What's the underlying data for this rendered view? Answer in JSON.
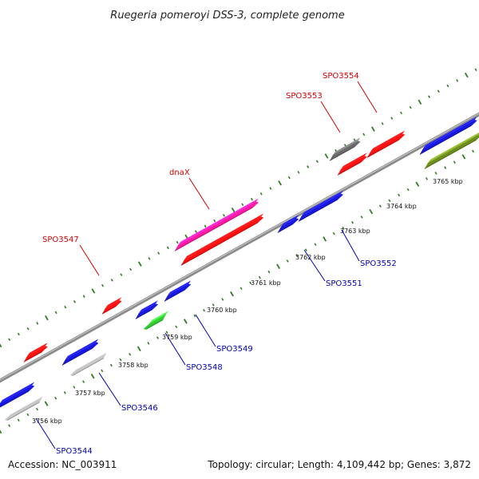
{
  "title": "Ruegeria pomeroyi DSS-3, complete genome",
  "footer": {
    "accession": "Accession: NC_003911",
    "summary": "Topology: circular; Length: 4,109,442 bp; Genes: 3,872"
  },
  "colors": {
    "backbone": "#8a8a8a",
    "tick": "#2e7d1f",
    "label_forward": "#d40000",
    "label_reverse": "#0000b0",
    "red": "#ff1010",
    "blue": "#1818e0",
    "gray": "#c8c8c8",
    "darkgray": "#6a6a6a",
    "magenta": "#ff1aa6",
    "green": "#33cc33",
    "olive": "#6e8f1e"
  },
  "axis": {
    "tick_labels": [
      "3756 kbp",
      "3757 kbp",
      "3758 kbp",
      "3759 kbp",
      "3760 kbp",
      "3761 kbp",
      "3762 kbp",
      "3763 kbp",
      "3764 kbp",
      "3765 kbp"
    ]
  },
  "features": [
    {
      "id": "f1",
      "color": "blue",
      "strand": "+"
    },
    {
      "id": "f2",
      "color": "gray",
      "strand": "-"
    },
    {
      "id": "f3",
      "color": "red",
      "strand": "+"
    },
    {
      "id": "f4",
      "color": "blue",
      "strand": "+"
    },
    {
      "id": "f5",
      "color": "gray",
      "strand": "-"
    },
    {
      "id": "f6",
      "color": "red",
      "strand": "+"
    },
    {
      "id": "f7",
      "color": "blue",
      "strand": "+"
    },
    {
      "id": "f8",
      "color": "green",
      "strand": "-"
    },
    {
      "id": "f9",
      "color": "blue",
      "strand": "+"
    },
    {
      "id": "f10",
      "color": "magenta",
      "strand": "+"
    },
    {
      "id": "f11",
      "color": "red",
      "strand": "+"
    },
    {
      "id": "f12",
      "color": "blue",
      "strand": "+"
    },
    {
      "id": "f13",
      "color": "blue",
      "strand": "+"
    },
    {
      "id": "f14",
      "color": "darkgray",
      "strand": "+"
    },
    {
      "id": "f15",
      "color": "red",
      "strand": "+"
    },
    {
      "id": "f16",
      "color": "red",
      "strand": "+"
    },
    {
      "id": "f17",
      "color": "blue",
      "strand": "+"
    },
    {
      "id": "f18",
      "color": "olive",
      "strand": "+"
    }
  ],
  "gene_labels": [
    {
      "text": "SPO3547",
      "side": "forward"
    },
    {
      "text": "dnaX",
      "side": "forward"
    },
    {
      "text": "SPO3553",
      "side": "forward"
    },
    {
      "text": "SPO3554",
      "side": "forward"
    },
    {
      "text": "SPO3544",
      "side": "reverse"
    },
    {
      "text": "SPO3546",
      "side": "reverse"
    },
    {
      "text": "SPO3548",
      "side": "reverse"
    },
    {
      "text": "SPO3549",
      "side": "reverse"
    },
    {
      "text": "SPO3551",
      "side": "reverse"
    },
    {
      "text": "SPO3552",
      "side": "reverse"
    }
  ]
}
